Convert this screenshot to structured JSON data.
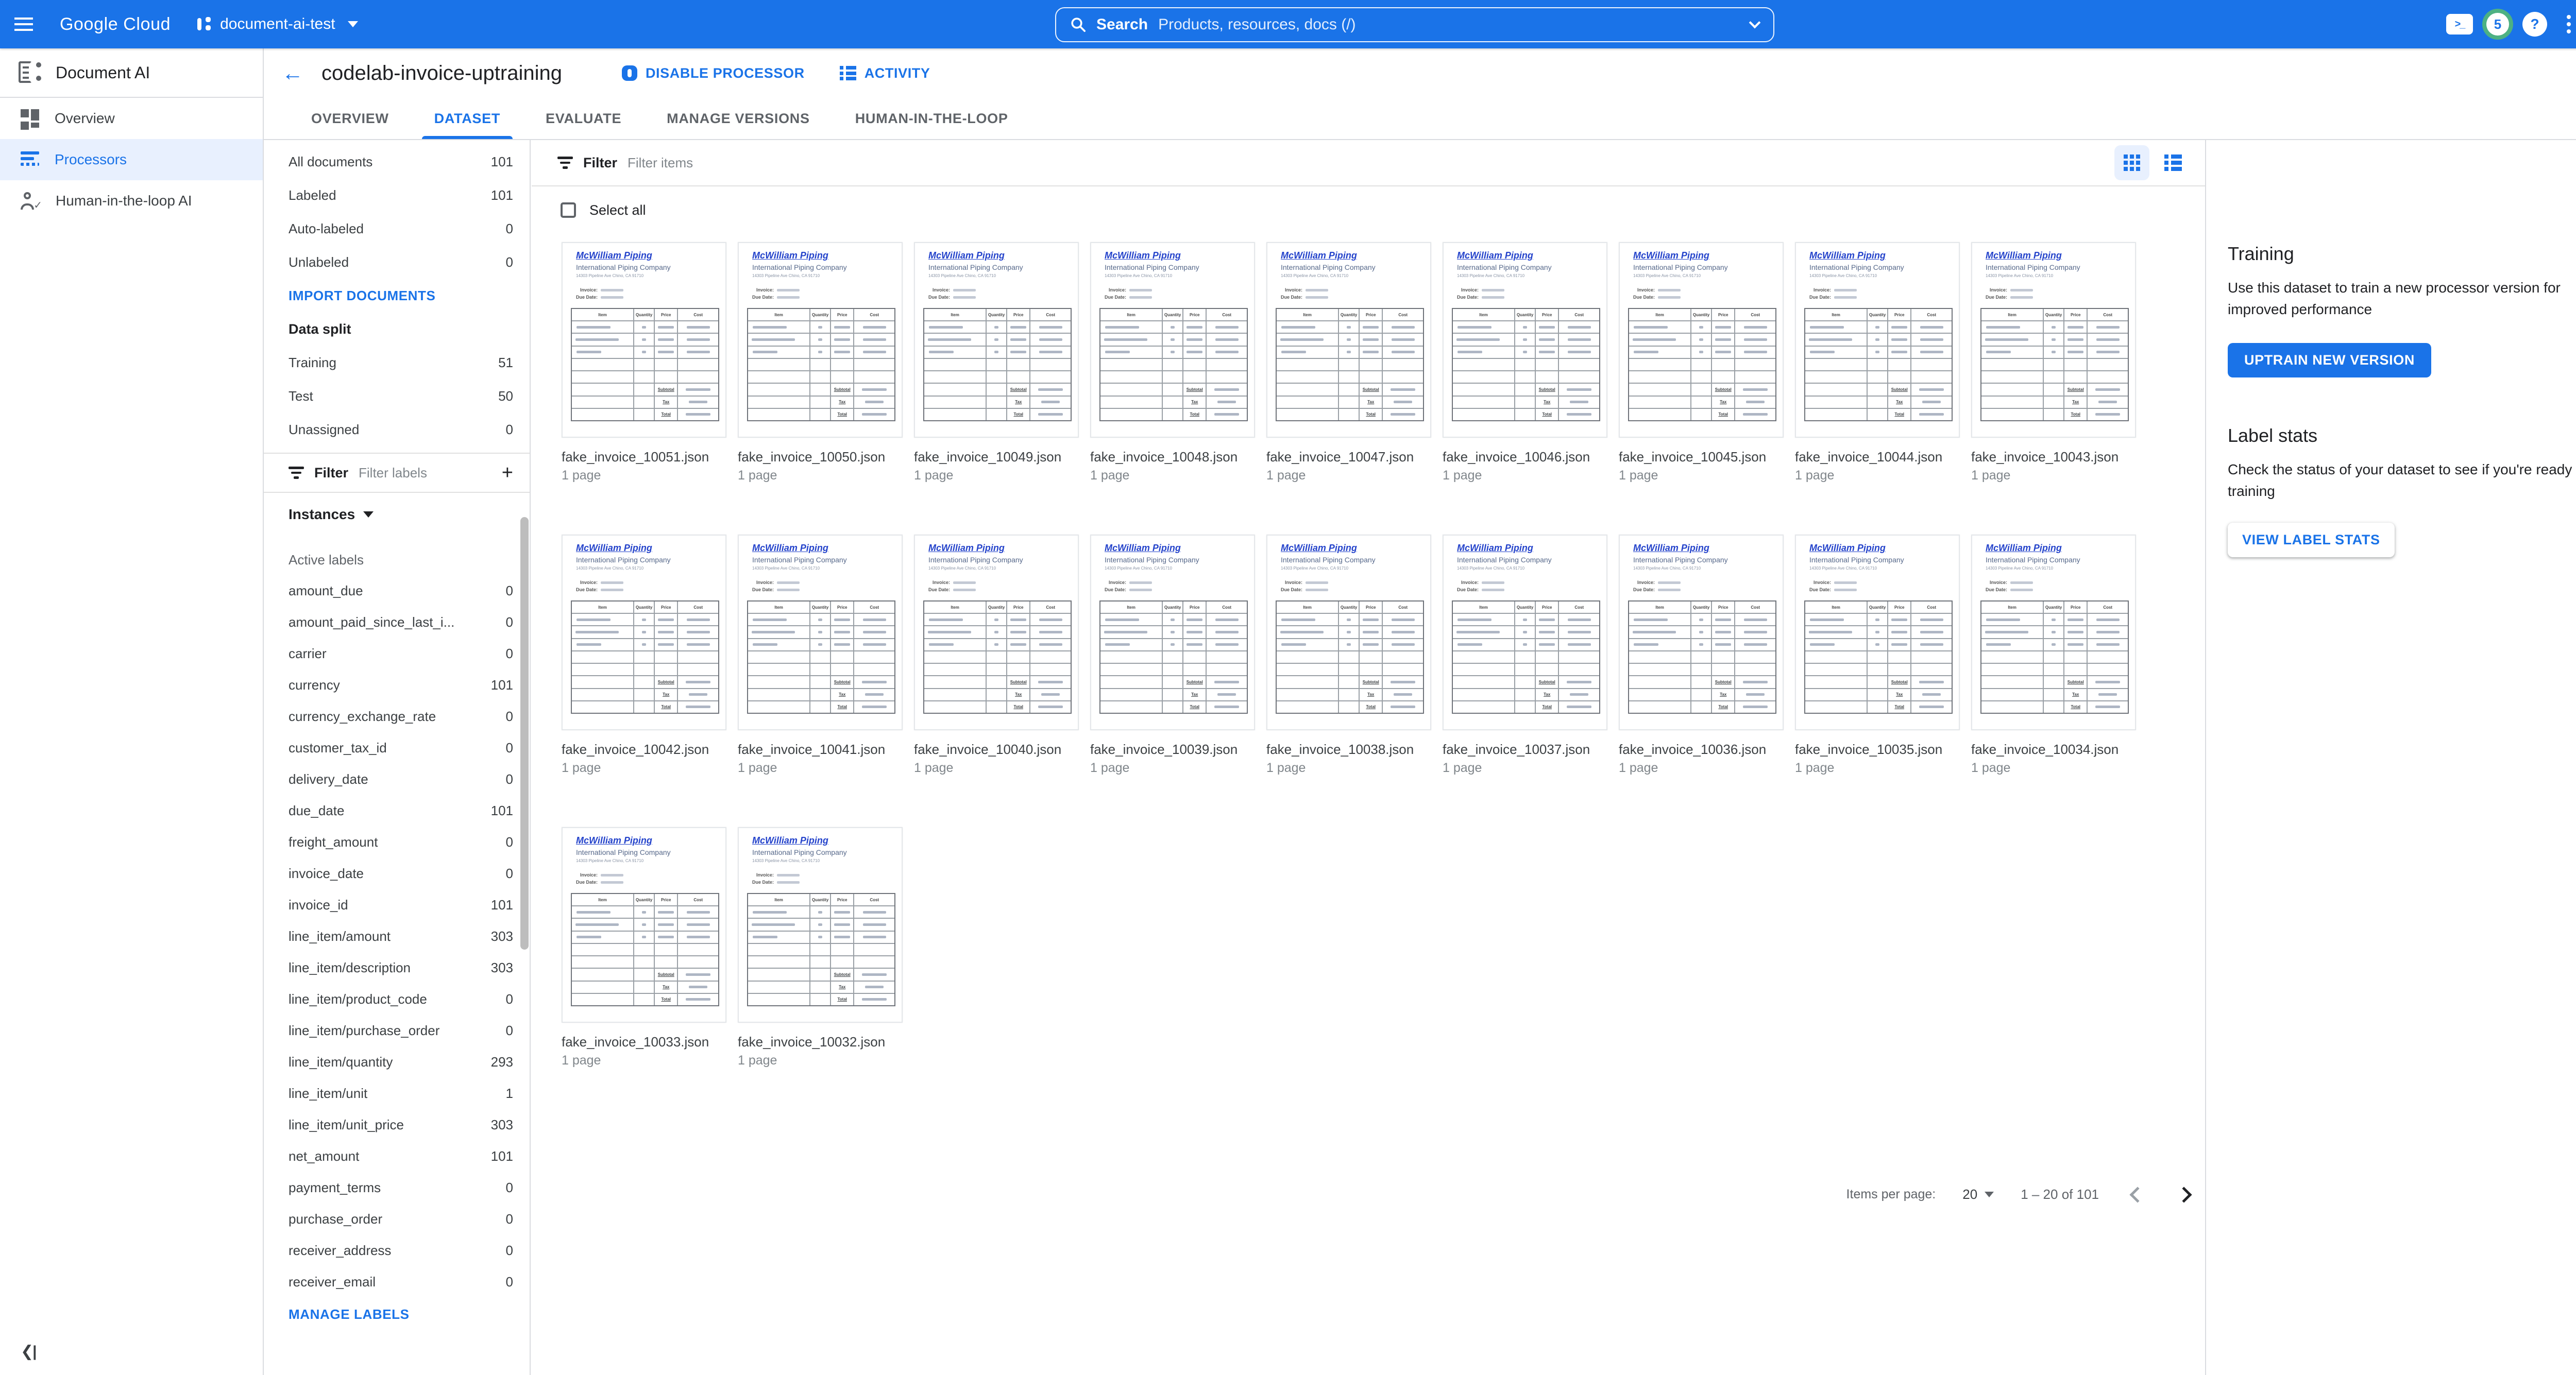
{
  "topbar": {
    "logo": "Google Cloud",
    "project": "document-ai-test",
    "search": {
      "label": "Search",
      "placeholder": "Products, resources, docs (/)"
    },
    "notification_count": "5",
    "help_glyph": "?"
  },
  "sidebar": {
    "product": "Document AI",
    "items": [
      {
        "label": "Overview",
        "active": false
      },
      {
        "label": "Processors",
        "active": true
      },
      {
        "label": "Human-in-the-loop AI",
        "active": false
      }
    ]
  },
  "header": {
    "back_glyph": "←",
    "title": "codelab-invoice-uptraining",
    "disable_label": "DISABLE PROCESSOR",
    "activity_label": "ACTIVITY"
  },
  "tabs": [
    {
      "label": "OVERVIEW",
      "active": false
    },
    {
      "label": "DATASET",
      "active": true
    },
    {
      "label": "EVALUATE",
      "active": false
    },
    {
      "label": "MANAGE VERSIONS",
      "active": false
    },
    {
      "label": "HUMAN-IN-THE-LOOP",
      "active": false
    }
  ],
  "docpanel": {
    "counts": [
      {
        "label": "All documents",
        "value": "101"
      },
      {
        "label": "Labeled",
        "value": "101"
      },
      {
        "label": "Auto-labeled",
        "value": "0"
      },
      {
        "label": "Unlabeled",
        "value": "0"
      }
    ],
    "import_label": "IMPORT DOCUMENTS",
    "data_split_label": "Data split",
    "split": [
      {
        "label": "Training",
        "value": "51"
      },
      {
        "label": "Test",
        "value": "50"
      },
      {
        "label": "Unassigned",
        "value": "0"
      }
    ],
    "filter_label": "Filter",
    "filter_placeholder": "Filter labels",
    "instances_label": "Instances",
    "active_labels_label": "Active labels",
    "labels": [
      {
        "name": "amount_due",
        "count": "0"
      },
      {
        "name": "amount_paid_since_last_i...",
        "count": "0"
      },
      {
        "name": "carrier",
        "count": "0"
      },
      {
        "name": "currency",
        "count": "101"
      },
      {
        "name": "currency_exchange_rate",
        "count": "0"
      },
      {
        "name": "customer_tax_id",
        "count": "0"
      },
      {
        "name": "delivery_date",
        "count": "0"
      },
      {
        "name": "due_date",
        "count": "101"
      },
      {
        "name": "freight_amount",
        "count": "0"
      },
      {
        "name": "invoice_date",
        "count": "0"
      },
      {
        "name": "invoice_id",
        "count": "101"
      },
      {
        "name": "line_item/amount",
        "count": "303"
      },
      {
        "name": "line_item/description",
        "count": "303"
      },
      {
        "name": "line_item/product_code",
        "count": "0"
      },
      {
        "name": "line_item/purchase_order",
        "count": "0"
      },
      {
        "name": "line_item/quantity",
        "count": "293"
      },
      {
        "name": "line_item/unit",
        "count": "1"
      },
      {
        "name": "line_item/unit_price",
        "count": "303"
      },
      {
        "name": "net_amount",
        "count": "101"
      },
      {
        "name": "payment_terms",
        "count": "0"
      },
      {
        "name": "purchase_order",
        "count": "0"
      },
      {
        "name": "receiver_address",
        "count": "0"
      },
      {
        "name": "receiver_email",
        "count": "0"
      }
    ],
    "manage_label": "MANAGE LABELS"
  },
  "main": {
    "filter_label": "Filter",
    "filter_placeholder": "Filter items",
    "select_all_label": "Select all",
    "docs": [
      {
        "name": "fake_invoice_10051.json",
        "pages": "1 page"
      },
      {
        "name": "fake_invoice_10050.json",
        "pages": "1 page"
      },
      {
        "name": "fake_invoice_10049.json",
        "pages": "1 page"
      },
      {
        "name": "fake_invoice_10048.json",
        "pages": "1 page"
      },
      {
        "name": "fake_invoice_10047.json",
        "pages": "1 page"
      },
      {
        "name": "fake_invoice_10046.json",
        "pages": "1 page"
      },
      {
        "name": "fake_invoice_10045.json",
        "pages": "1 page"
      },
      {
        "name": "fake_invoice_10044.json",
        "pages": "1 page"
      },
      {
        "name": "fake_invoice_10043.json",
        "pages": "1 page"
      },
      {
        "name": "fake_invoice_10042.json",
        "pages": "1 page"
      },
      {
        "name": "fake_invoice_10041.json",
        "pages": "1 page"
      },
      {
        "name": "fake_invoice_10040.json",
        "pages": "1 page"
      },
      {
        "name": "fake_invoice_10039.json",
        "pages": "1 page"
      },
      {
        "name": "fake_invoice_10038.json",
        "pages": "1 page"
      },
      {
        "name": "fake_invoice_10037.json",
        "pages": "1 page"
      },
      {
        "name": "fake_invoice_10036.json",
        "pages": "1 page"
      },
      {
        "name": "fake_invoice_10035.json",
        "pages": "1 page"
      },
      {
        "name": "fake_invoice_10034.json",
        "pages": "1 page"
      },
      {
        "name": "fake_invoice_10033.json",
        "pages": "1 page"
      },
      {
        "name": "fake_invoice_10032.json",
        "pages": "1 page"
      }
    ],
    "pagination": {
      "items_per_page_label": "Items per page:",
      "page_size": "20",
      "range": "1 – 20 of 101"
    }
  },
  "thumbnail": {
    "title": "McWilliam Piping",
    "subtitle": "International Piping Company",
    "address": "14303 Pipeline Ave Chino, CA 91710",
    "invoice_label": "Invoice:",
    "due_label": "Due Date:",
    "columns": [
      "Item",
      "Quantity",
      "Price",
      "Cost"
    ],
    "totals": [
      "Subtotal",
      "Tax",
      "Total"
    ]
  },
  "rightpanel": {
    "training_title": "Training",
    "training_desc": "Use this dataset to train a new processor version for improved performance",
    "uptrain_label": "UPTRAIN NEW VERSION",
    "stats_title": "Label stats",
    "stats_desc": "Check the status of your dataset to see if you're ready for training",
    "view_stats_label": "VIEW LABEL STATS"
  },
  "colors": {
    "topbar_blue": "#1a73e8",
    "accent_blue": "#1a73e8",
    "active_item_bg": "#e8f0fe",
    "divider": "#dadce0",
    "badge_ring_green": "#4db183"
  }
}
